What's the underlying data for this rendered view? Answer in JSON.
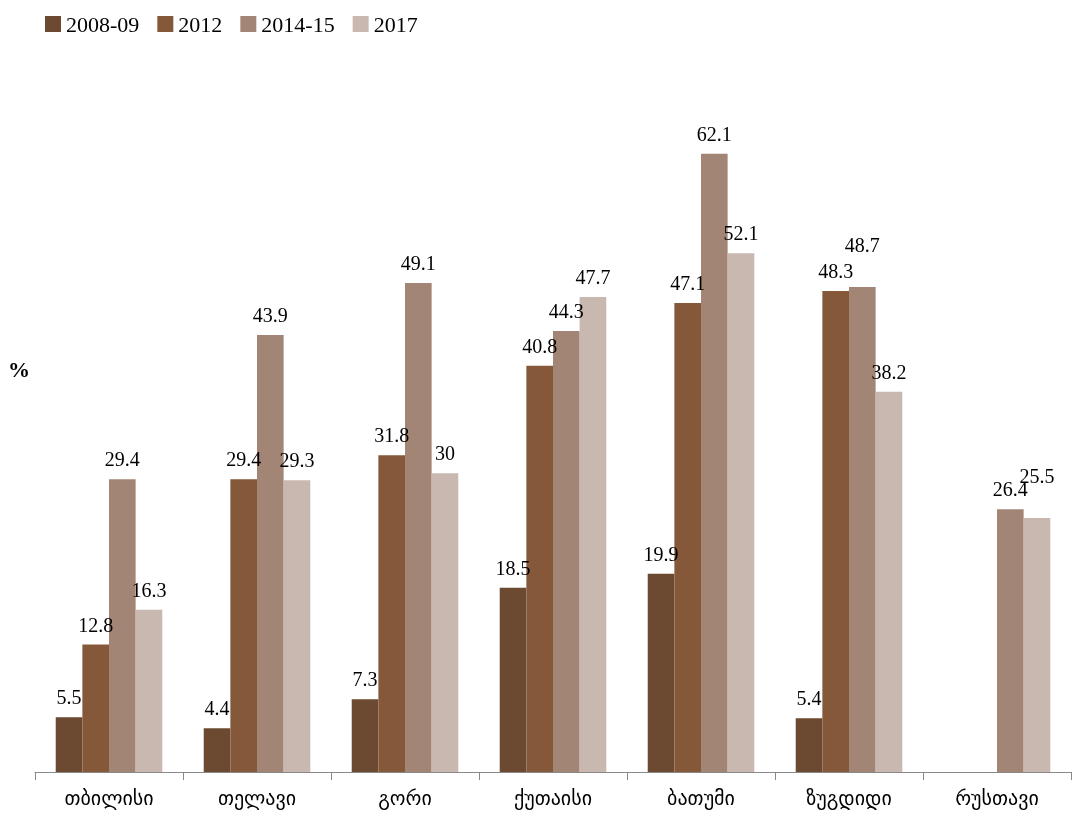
{
  "chart_data": {
    "type": "bar",
    "ylabel": "%",
    "categories": [
      "თბილისი",
      "თელავი",
      "გორი",
      "ქუთაისი",
      "ბათუმი",
      "ზუგდიდი",
      "რუსთავი"
    ],
    "series": [
      {
        "name": "2008-09",
        "color": "#6b4a31",
        "values": [
          5.5,
          4.4,
          7.3,
          18.5,
          19.9,
          5.4,
          null
        ]
      },
      {
        "name": "2012",
        "color": "#85583a",
        "values": [
          12.8,
          29.4,
          31.8,
          40.8,
          47.1,
          48.3,
          null
        ]
      },
      {
        "name": "2014-15",
        "color": "#a38575",
        "values": [
          29.4,
          43.9,
          49.1,
          44.3,
          62.1,
          48.7,
          26.4
        ]
      },
      {
        "name": "2017",
        "color": "#c8b8b0",
        "values": [
          16.3,
          29.3,
          30,
          47.7,
          52.1,
          38.2,
          25.5
        ]
      }
    ],
    "data_labels": true,
    "legend": "top left",
    "grid": false
  }
}
